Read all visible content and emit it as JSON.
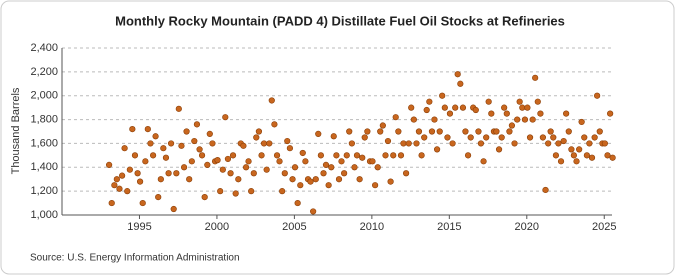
{
  "chart_data": {
    "type": "scatter",
    "title": "Monthly Rocky Mountain (PADD 4) Distillate Fuel Oil Stocks at Refineries",
    "ylabel": "Thousand Barrels",
    "source": "Source: U.S. Energy Information Administration",
    "color": "#c8661e",
    "grid": true,
    "xlim": [
      1990,
      2025.5
    ],
    "ylim": [
      1000,
      2400
    ],
    "xticks": [
      1995,
      2000,
      2005,
      2010,
      2015,
      2020,
      2025
    ],
    "yticks": [
      {
        "value": 1000,
        "label": "1,000"
      },
      {
        "value": 1200,
        "label": "1,200"
      },
      {
        "value": 1400,
        "label": "1,400"
      },
      {
        "value": 1600,
        "label": "1,600"
      },
      {
        "value": 1800,
        "label": "1,800"
      },
      {
        "value": 2000,
        "label": "2,000"
      },
      {
        "value": 2200,
        "label": "2,200"
      },
      {
        "value": 2400,
        "label": "2,400"
      }
    ],
    "x": [
      1993.04,
      1993.21,
      1993.38,
      1993.54,
      1993.71,
      1993.88,
      1994.04,
      1994.21,
      1994.38,
      1994.54,
      1994.71,
      1994.88,
      1995.04,
      1995.21,
      1995.38,
      1995.54,
      1995.71,
      1995.88,
      1996.04,
      1996.21,
      1996.38,
      1996.54,
      1996.71,
      1996.88,
      1997.04,
      1997.21,
      1997.38,
      1997.54,
      1997.71,
      1997.88,
      1998.04,
      1998.21,
      1998.38,
      1998.54,
      1998.71,
      1998.88,
      1999.04,
      1999.21,
      1999.38,
      1999.54,
      1999.71,
      1999.88,
      2000.04,
      2000.21,
      2000.38,
      2000.54,
      2000.71,
      2000.88,
      2001.04,
      2001.21,
      2001.38,
      2001.54,
      2001.71,
      2001.88,
      2002.04,
      2002.21,
      2002.38,
      2002.54,
      2002.71,
      2002.88,
      2003.04,
      2003.21,
      2003.38,
      2003.54,
      2003.71,
      2003.88,
      2004.04,
      2004.21,
      2004.38,
      2004.54,
      2004.71,
      2004.88,
      2005.04,
      2005.21,
      2005.38,
      2005.54,
      2005.71,
      2005.88,
      2006.04,
      2006.21,
      2006.38,
      2006.54,
      2006.71,
      2006.88,
      2007.04,
      2007.21,
      2007.38,
      2007.54,
      2007.71,
      2007.88,
      2008.04,
      2008.21,
      2008.38,
      2008.54,
      2008.71,
      2008.88,
      2009.04,
      2009.21,
      2009.38,
      2009.54,
      2009.71,
      2009.88,
      2010.04,
      2010.21,
      2010.38,
      2010.54,
      2010.71,
      2010.88,
      2011.04,
      2011.21,
      2011.38,
      2011.54,
      2011.71,
      2011.88,
      2012.04,
      2012.21,
      2012.38,
      2012.54,
      2012.71,
      2012.88,
      2013.04,
      2013.21,
      2013.38,
      2013.54,
      2013.71,
      2013.88,
      2014.04,
      2014.21,
      2014.38,
      2014.54,
      2014.71,
      2014.88,
      2015.04,
      2015.21,
      2015.38,
      2015.54,
      2015.71,
      2015.88,
      2016.04,
      2016.21,
      2016.38,
      2016.54,
      2016.71,
      2016.88,
      2017.04,
      2017.21,
      2017.38,
      2017.54,
      2017.71,
      2017.88,
      2018.04,
      2018.21,
      2018.38,
      2018.54,
      2018.71,
      2018.88,
      2019.04,
      2019.21,
      2019.38,
      2019.54,
      2019.71,
      2019.88,
      2020.04,
      2020.21,
      2020.38,
      2020.54,
      2020.71,
      2020.88,
      2021.04,
      2021.21,
      2021.38,
      2021.54,
      2021.71,
      2021.88,
      2022.04,
      2022.21,
      2022.38,
      2022.54,
      2022.71,
      2022.88,
      2023.04,
      2023.21,
      2023.38,
      2023.54,
      2023.71,
      2023.88,
      2024.04,
      2024.21,
      2024.38,
      2024.54,
      2024.71,
      2024.88,
      2025.04,
      2025.21,
      2025.38,
      2025.54
    ],
    "values": [
      1420,
      1100,
      1250,
      1300,
      1220,
      1330,
      1560,
      1200,
      1380,
      1720,
      1500,
      1350,
      1280,
      1100,
      1450,
      1720,
      1600,
      1500,
      1660,
      1150,
      1300,
      1560,
      1480,
      1350,
      1600,
      1050,
      1350,
      1890,
      1580,
      1400,
      1700,
      1300,
      1450,
      1620,
      1760,
      1550,
      1500,
      1150,
      1420,
      1680,
      1600,
      1450,
      1460,
      1200,
      1380,
      1820,
      1470,
      1350,
      1500,
      1180,
      1300,
      1600,
      1580,
      1400,
      1450,
      1200,
      1350,
      1650,
      1700,
      1500,
      1600,
      1380,
      1600,
      1960,
      1760,
      1500,
      1450,
      1200,
      1350,
      1620,
      1560,
      1300,
      1400,
      1100,
      1250,
      1520,
      1450,
      1300,
      1280,
      1030,
      1300,
      1680,
      1500,
      1350,
      1420,
      1250,
      1400,
      1660,
      1500,
      1300,
      1450,
      1350,
      1500,
      1700,
      1600,
      1400,
      1500,
      1300,
      1480,
      1650,
      1700,
      1450,
      1450,
      1250,
      1400,
      1700,
      1750,
      1500,
      1620,
      1280,
      1500,
      1820,
      1700,
      1500,
      1600,
      1350,
      1600,
      1900,
      1800,
      1600,
      1700,
      1500,
      1650,
      1880,
      1950,
      1700,
      1800,
      1550,
      1700,
      2000,
      1900,
      1650,
      1850,
      1600,
      1900,
      2180,
      2100,
      1900,
      1700,
      1500,
      1650,
      1900,
      1880,
      1700,
      1600,
      1450,
      1650,
      1950,
      1850,
      1700,
      1700,
      1550,
      1650,
      1900,
      1850,
      1700,
      1750,
      1600,
      1800,
      1950,
      1900,
      1800,
      1900,
      1650,
      1800,
      2150,
      1950,
      1850,
      1650,
      1210,
      1600,
      1700,
      1650,
      1500,
      1600,
      1450,
      1620,
      1850,
      1700,
      1550,
      1500,
      1450,
      1550,
      1780,
      1650,
      1500,
      1600,
      1480,
      1650,
      2000,
      1700,
      1600,
      1600,
      1500,
      1850,
      1480
    ]
  }
}
